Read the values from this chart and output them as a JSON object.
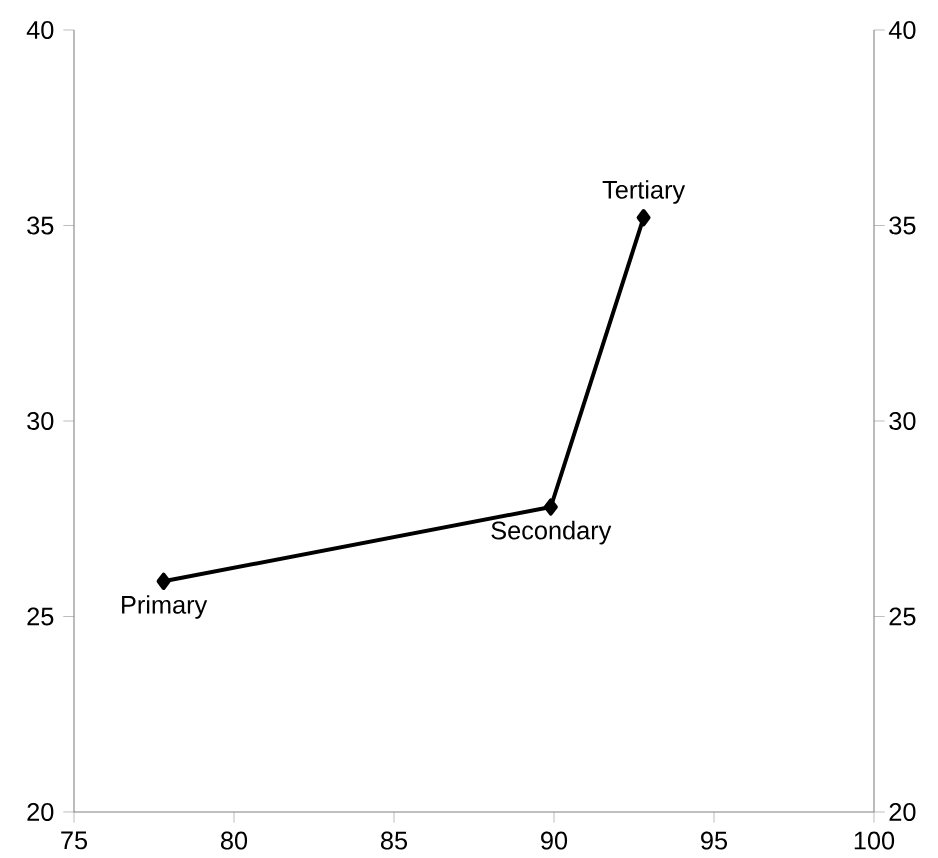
{
  "chart_data": {
    "type": "line",
    "x": [
      77.8,
      89.9,
      92.8
    ],
    "values": [
      25.9,
      27.8,
      35.2
    ],
    "color": "#000000",
    "marker": "diamond",
    "line_style": "solid",
    "xlim": [
      75,
      100
    ],
    "xticks": [
      75,
      80,
      85,
      90,
      95,
      100
    ],
    "ylim": [
      20,
      40
    ],
    "yticks": [
      20,
      25,
      30,
      35,
      40
    ],
    "y2lim": [
      20,
      40
    ],
    "y2ticks": [
      20,
      25,
      30,
      35,
      40
    ],
    "annotations": [
      {
        "text": "Primary",
        "x": 77.8,
        "y": 25.9
      },
      {
        "text": "Secondary",
        "x": 89.9,
        "y": 27.8
      },
      {
        "text": "Tertiary",
        "x": 92.8,
        "y": 35.2
      }
    ]
  }
}
